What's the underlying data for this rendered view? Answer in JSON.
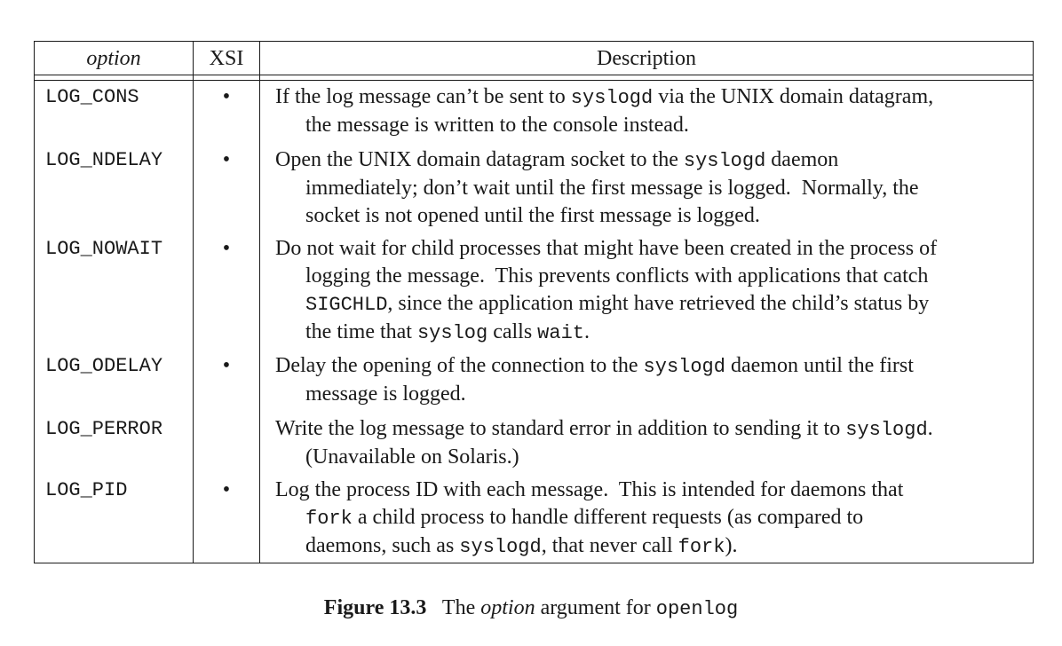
{
  "table": {
    "headers": {
      "option": "option",
      "xsi": "XSI",
      "description": "Description"
    },
    "rows": [
      {
        "option": "LOG_CONS",
        "xsi": "•",
        "description_lines": [
          [
            {
              "t": "If the log message can’t be sent to "
            },
            {
              "t": "syslogd",
              "code": true
            },
            {
              "t": " via the UNIX domain datagram,"
            }
          ],
          [
            {
              "t": "the message is written to the console instead."
            }
          ]
        ]
      },
      {
        "option": "LOG_NDELAY",
        "xsi": "•",
        "description_lines": [
          [
            {
              "t": "Open the UNIX domain datagram socket to the "
            },
            {
              "t": "syslogd",
              "code": true
            },
            {
              "t": " daemon"
            }
          ],
          [
            {
              "t": "immediately; don’t wait until the first message is logged.  Normally, the"
            }
          ],
          [
            {
              "t": "socket is not opened until the first message is logged."
            }
          ]
        ]
      },
      {
        "option": "LOG_NOWAIT",
        "xsi": "•",
        "description_lines": [
          [
            {
              "t": "Do not wait for child processes that might have been created in the process of"
            }
          ],
          [
            {
              "t": "logging the message.  This prevents conflicts with applications that catch"
            }
          ],
          [
            {
              "t": "SIGCHLD",
              "code": true
            },
            {
              "t": ", since the application might have retrieved the child’s status by"
            }
          ],
          [
            {
              "t": "the time that "
            },
            {
              "t": "syslog",
              "code": true
            },
            {
              "t": " calls "
            },
            {
              "t": "wait",
              "code": true
            },
            {
              "t": "."
            }
          ]
        ]
      },
      {
        "option": "LOG_ODELAY",
        "xsi": "•",
        "description_lines": [
          [
            {
              "t": "Delay the opening of the connection to the "
            },
            {
              "t": "syslogd",
              "code": true
            },
            {
              "t": " daemon until the first"
            }
          ],
          [
            {
              "t": "message is logged."
            }
          ]
        ]
      },
      {
        "option": "LOG_PERROR",
        "xsi": "",
        "description_lines": [
          [
            {
              "t": "Write the log message to standard error in addition to sending it to "
            },
            {
              "t": "syslogd",
              "code": true
            },
            {
              "t": "."
            }
          ],
          [
            {
              "t": "(Unavailable on Solaris.)"
            }
          ]
        ]
      },
      {
        "option": "LOG_PID",
        "xsi": "•",
        "description_lines": [
          [
            {
              "t": "Log the process ID with each message.  This is intended for daemons that"
            }
          ],
          [
            {
              "t": "fork",
              "code": true
            },
            {
              "t": " a child process to handle different requests (as compared to"
            }
          ],
          [
            {
              "t": "daemons, such as "
            },
            {
              "t": "syslogd",
              "code": true
            },
            {
              "t": ", that never call "
            },
            {
              "t": "fork",
              "code": true
            },
            {
              "t": ")."
            }
          ]
        ]
      }
    ]
  },
  "caption": {
    "figure_label": "Figure 13.3",
    "text_before": "The ",
    "emphasis": "option",
    "text_after": " argument for ",
    "code": "openlog"
  }
}
